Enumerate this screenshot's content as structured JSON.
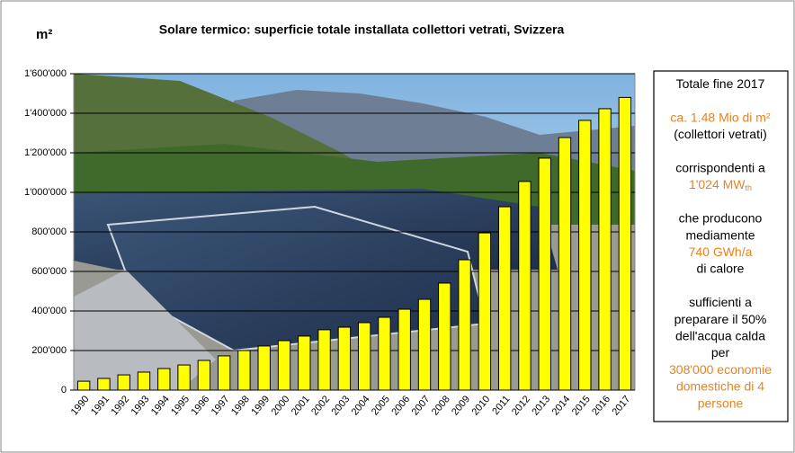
{
  "chart_data": {
    "type": "bar",
    "title": "Solare termico: superficie totale installata collettori vetrati, Svizzera",
    "y_label": "m²",
    "categories": [
      "1990",
      "1991",
      "1992",
      "1993",
      "1994",
      "1995",
      "1996",
      "1997",
      "1998",
      "1999",
      "2000",
      "2001",
      "2002",
      "2003",
      "2004",
      "2005",
      "2006",
      "2007",
      "2008",
      "2009",
      "2010",
      "2011",
      "2012",
      "2013",
      "2014",
      "2015",
      "2016",
      "2017"
    ],
    "values": [
      45000,
      59000,
      77000,
      91000,
      109000,
      127000,
      150000,
      173000,
      200000,
      223000,
      250000,
      273000,
      305000,
      318000,
      341000,
      368000,
      409000,
      459000,
      541000,
      659000,
      795000,
      927000,
      1055000,
      1173000,
      1277000,
      1364000,
      1423000,
      1480000
    ],
    "color": "#ffff00",
    "ylim": [
      0,
      1600000
    ],
    "yticks": [
      0,
      {
        "value": 200000,
        "label": "200'000"
      },
      {
        "value": 400000,
        "label": "400'000"
      },
      {
        "value": 600000,
        "label": "600'000"
      },
      {
        "value": 800000,
        "label": "800'000"
      },
      {
        "value": 1000000,
        "label": "1'000'000"
      },
      {
        "value": 1200000,
        "label": "1'200'000"
      },
      {
        "value": 1400000,
        "label": "1'400'000"
      },
      {
        "value": 1600000,
        "label": "1'600'000"
      }
    ],
    "grid": true,
    "annotations": [
      [
        {
          "text": "Totale fine 2017",
          "color": "#000000"
        }
      ],
      [
        {
          "text": "ca. 1.48 Mio di m²",
          "color": "#e8821e"
        },
        {
          "text": "(collettori vetrati)",
          "color": "#000000"
        }
      ],
      [
        {
          "text": "corrispondenti a",
          "color": "#000000"
        },
        {
          "text": "1'024 MW",
          "sub": "th",
          "color": "#e8821e"
        }
      ],
      [
        {
          "text": "che producono",
          "color": "#000000"
        },
        {
          "text": "mediamente",
          "color": "#000000"
        },
        {
          "text": "740 GWh/a",
          "color": "#e8821e"
        },
        {
          "text": "di calore",
          "color": "#000000"
        }
      ],
      [
        {
          "text": "sufficienti a",
          "color": "#000000"
        },
        {
          "text": "preparare il 50%",
          "color": "#000000"
        },
        {
          "text": "dell'acqua calda",
          "color": "#000000"
        },
        {
          "text": "per",
          "color": "#000000"
        },
        {
          "text": "308'000 economie",
          "color": "#e8821e"
        },
        {
          "text": "domestiche di 4",
          "color": "#e8821e"
        },
        {
          "text": "persone",
          "color": "#e8821e"
        }
      ]
    ]
  }
}
